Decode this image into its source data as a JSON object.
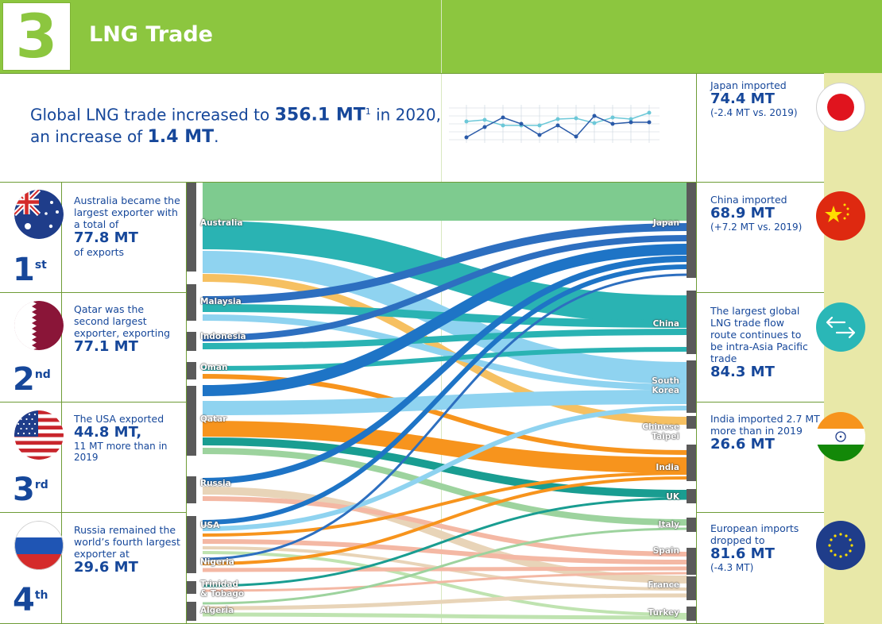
{
  "header": {
    "number": "3",
    "title": "LNG Trade"
  },
  "summary": {
    "line1_pre": "Global LNG trade increased to ",
    "line1_value": "356.1 MT",
    "line1_footnote": "1",
    "line1_post": " in 2020,",
    "line2_pre": "an increase of ",
    "line2_value": "1.4 MT",
    "line2_post": "."
  },
  "exporters": [
    {
      "rank_number": "1",
      "rank_suffix": "st",
      "flag": "australia-flag-icon",
      "pre": "Australia became the largest exporter with a total of",
      "value": "77.8 MT",
      "post": "of exports"
    },
    {
      "rank_number": "2",
      "rank_suffix": "nd",
      "flag": "qatar-flag-icon",
      "pre": "Qatar was the second largest exporter, exporting",
      "value": "77.1 MT",
      "post": ""
    },
    {
      "rank_number": "3",
      "rank_suffix": "rd",
      "flag": "usa-flag-icon",
      "pre": "The USA exported",
      "value": "44.8 MT",
      "value_suffix": ",",
      "post": "11 MT more than in 2019"
    },
    {
      "rank_number": "4",
      "rank_suffix": "th",
      "flag": "russia-flag-icon",
      "pre": "Russia remained the world’s fourth largest exporter at",
      "value": "29.6 MT",
      "post": ""
    }
  ],
  "importers": [
    {
      "flag": "japan-flag-icon",
      "pre": "Japan imported",
      "value": "74.4 MT",
      "post": "(-2.4 MT vs. 2019)"
    },
    {
      "flag": "china-flag-icon",
      "pre": "China imported",
      "value": "68.9 MT",
      "post": "(+7.2 MT vs. 2019)"
    },
    {
      "flag": "trade-arrows-icon",
      "pre": "The largest global LNG trade flow route continues to be intra-Asia Pacific trade",
      "value": "84.3 MT",
      "post": ""
    },
    {
      "flag": "india-flag-icon",
      "pre": "India imported 2.7 MT more than in 2019",
      "value": "26.6 MT",
      "post": ""
    },
    {
      "flag": "eu-flag-icon",
      "pre": "European imports dropped to",
      "value": "81.6 MT",
      "post": "(-4.3 MT)"
    }
  ],
  "sankey": {
    "sources": [
      "Australia",
      "Malaysia",
      "Indonesia",
      "Oman",
      "Qatar",
      "Russia",
      "USA",
      "Nigeria",
      "Trinidad & Tobago",
      "Algeria"
    ],
    "targets": [
      "Japan",
      "China",
      "South Korea",
      "Chinese Taipei",
      "India",
      "UK",
      "Italy",
      "Spain",
      "France",
      "Turkey"
    ]
  },
  "colors": {
    "header_green": "#8cc63f",
    "text_blue": "#16479a",
    "right_strip": "#e8e8a8"
  }
}
